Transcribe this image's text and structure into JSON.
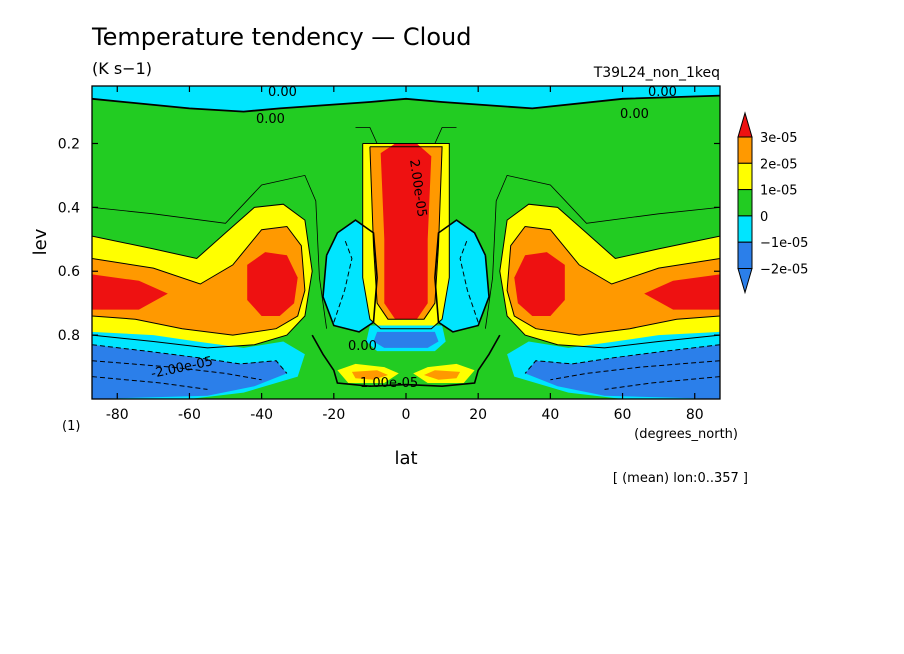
{
  "chart_data": {
    "type": "heatmap",
    "title": "Temperature tendency — Cloud",
    "units": "(K s−1)",
    "run_label": "T39L24_non_1keq",
    "xlabel": "lat",
    "x_units": "(degrees_north)",
    "ylabel": "lev",
    "y_units": "(1)",
    "xlim": [
      -87,
      87
    ],
    "ylim": [
      1.0,
      0.02
    ],
    "y_inverted": true,
    "xticks": [
      -80,
      -60,
      -40,
      -20,
      0,
      20,
      40,
      60,
      80
    ],
    "xtick_labels": [
      "-80",
      "-60",
      "-40",
      "-20",
      "0",
      "20",
      "40",
      "60",
      "80"
    ],
    "yticks": [
      0.2,
      0.4,
      0.6,
      0.8
    ],
    "ytick_labels": [
      "0.2",
      "0.4",
      "0.6",
      "0.8"
    ],
    "footnote": "[ (mean) lon:0..357 ]",
    "colorbar": {
      "labels": [
        "3e-05",
        "2e-05",
        "1e-05",
        "0",
        "−1e-05",
        "−2e-05"
      ],
      "levels": [
        -2e-05,
        -1e-05,
        0,
        1e-05,
        2e-05,
        3e-05
      ],
      "colors": [
        "#2b7fea",
        "#00e5ff",
        "#22cc22",
        "#ffff00",
        "#ff9900",
        "#ee1111"
      ]
    },
    "contour_labels": [
      "0.00",
      "0.00",
      "0.00",
      "0.00",
      "0.00",
      "1.00e-05",
      "2.00e-05",
      "-2.00e-05"
    ],
    "features": [
      {
        "lat": 0,
        "lev_top": 0.21,
        "lev_bottom": 0.75,
        "value": 3e-05,
        "kind": "tropical upper-tropospheric warming maximum"
      },
      {
        "lat": -38,
        "lev": 0.66,
        "value": 3e-05,
        "kind": "southern midlatitude warming maximum"
      },
      {
        "lat": 38,
        "lev": 0.66,
        "value": 3e-05,
        "kind": "northern midlatitude warming maximum"
      },
      {
        "lat": -60,
        "lev": 0.93,
        "value": -2e-05,
        "kind": "southern boundary-layer cooling"
      },
      {
        "lat": 60,
        "lev": 0.93,
        "value": -2e-05,
        "kind": "northern boundary-layer cooling"
      },
      {
        "lat": 0,
        "lev": 0.83,
        "value": -2e-05,
        "kind": "equatorial lower-tropospheric cooling"
      },
      {
        "lat": -12,
        "lev": 0.55,
        "value": -1e-05,
        "kind": "subtropical mid-level cooling (south)"
      },
      {
        "lat": 12,
        "lev": 0.55,
        "value": -1e-05,
        "kind": "subtropical mid-level cooling (north)"
      },
      {
        "lat": -9,
        "lev": 0.93,
        "value": 1e-05,
        "kind": "near-surface tropical warming (south)"
      },
      {
        "lat": 9,
        "lev": 0.93,
        "value": 1e-05,
        "kind": "near-surface tropical warming (north)"
      },
      {
        "lat": 0,
        "lev": 0.05,
        "value": -1e-05,
        "kind": "stratospheric cooling band"
      }
    ]
  }
}
